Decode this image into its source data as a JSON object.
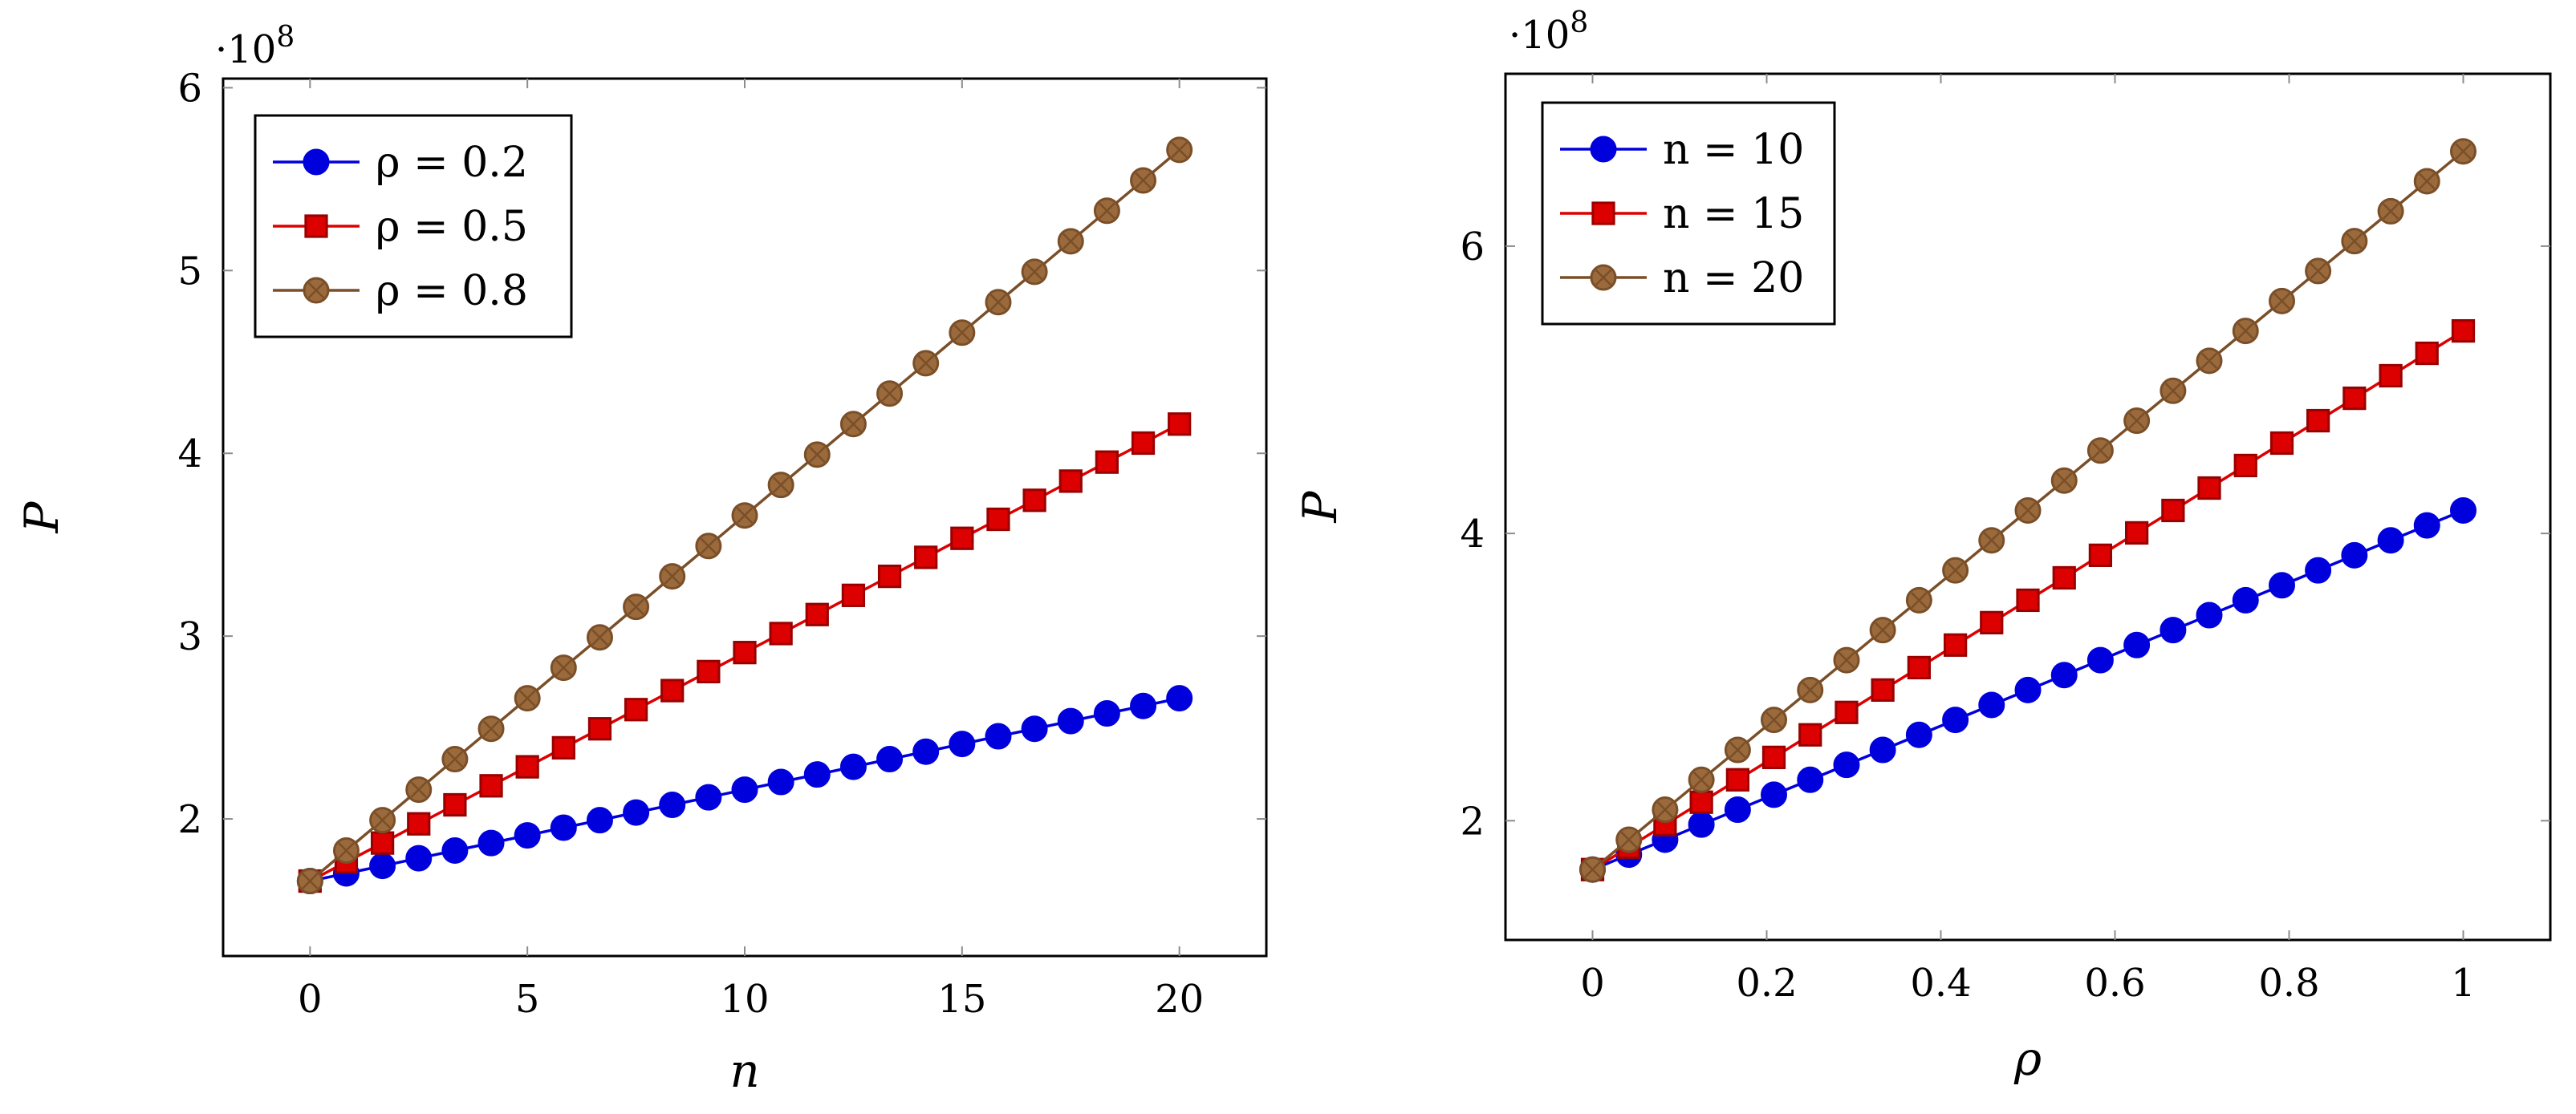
{
  "colors": {
    "blue": "#0000dd",
    "red": "#dd0000",
    "brown": "#7a4f28",
    "brown_fill": "#9a6a3c",
    "frame": "#000000",
    "tick_mark": "#8c8c8c"
  },
  "chart_data": [
    {
      "type": "line",
      "title": "",
      "xlabel": "n",
      "ylabel": "P",
      "y_multiplier": "·10",
      "y_multiplier_exp": "8",
      "xlim": [
        -2,
        22
      ],
      "ylim": [
        1.25,
        6.05
      ],
      "xticks": [
        0,
        5,
        10,
        15,
        20
      ],
      "xtick_labels": [
        "0",
        "5",
        "10",
        "15",
        "20"
      ],
      "yticks": [
        2,
        3,
        4,
        5,
        6
      ],
      "ytick_labels": [
        "2",
        "3",
        "4",
        "5",
        "6"
      ],
      "grid": false,
      "legend_placement": "top-left",
      "x": [
        0,
        0.8333,
        1.6667,
        2.5,
        3.3333,
        4.1667,
        5,
        5.8333,
        6.6667,
        7.5,
        8.3333,
        9.1667,
        10,
        10.8333,
        11.6667,
        12.5,
        13.3333,
        14.1667,
        15,
        15.8333,
        16.6667,
        17.5,
        18.3333,
        19.1667,
        20
      ],
      "series": [
        {
          "name": "ρ = 0.2",
          "marker": "circle",
          "color": "blue",
          "values": [
            1.66,
            1.702,
            1.743,
            1.785,
            1.827,
            1.868,
            1.91,
            1.952,
            1.993,
            2.035,
            2.077,
            2.118,
            2.16,
            2.202,
            2.243,
            2.285,
            2.327,
            2.368,
            2.41,
            2.452,
            2.493,
            2.535,
            2.577,
            2.618,
            2.66
          ]
        },
        {
          "name": "ρ = 0.5",
          "marker": "square",
          "color": "red",
          "values": [
            1.66,
            1.764,
            1.868,
            1.973,
            2.077,
            2.181,
            2.285,
            2.389,
            2.493,
            2.598,
            2.702,
            2.806,
            2.91,
            3.014,
            3.118,
            3.223,
            3.327,
            3.431,
            3.535,
            3.639,
            3.743,
            3.848,
            3.952,
            4.056,
            4.16
          ]
        },
        {
          "name": "ρ = 0.8",
          "marker": "otimes",
          "color": "brown",
          "values": [
            1.66,
            1.827,
            1.993,
            2.16,
            2.327,
            2.493,
            2.66,
            2.827,
            2.993,
            3.16,
            3.327,
            3.493,
            3.66,
            3.827,
            3.993,
            4.16,
            4.327,
            4.493,
            4.66,
            4.827,
            4.993,
            5.16,
            5.327,
            5.493,
            5.66
          ]
        }
      ]
    },
    {
      "type": "line",
      "title": "",
      "xlabel": "ρ",
      "ylabel": "P",
      "y_multiplier": "·10",
      "y_multiplier_exp": "8",
      "xlim": [
        -0.1,
        1.1
      ],
      "ylim": [
        1.17,
        7.2
      ],
      "xticks": [
        0,
        0.2,
        0.4,
        0.6,
        0.8,
        1
      ],
      "xtick_labels": [
        "0",
        "0.2",
        "0.4",
        "0.6",
        "0.8",
        "1"
      ],
      "yticks": [
        2,
        4,
        6
      ],
      "ytick_labels": [
        "2",
        "4",
        "6"
      ],
      "grid": false,
      "legend_placement": "top-left",
      "x": [
        0,
        0.0417,
        0.0833,
        0.125,
        0.1667,
        0.2083,
        0.25,
        0.2917,
        0.3333,
        0.375,
        0.4167,
        0.4583,
        0.5,
        0.5417,
        0.5833,
        0.625,
        0.6667,
        0.7083,
        0.75,
        0.7917,
        0.8333,
        0.875,
        0.9167,
        0.9583,
        1
      ],
      "series": [
        {
          "name": "n = 10",
          "marker": "circle",
          "color": "blue",
          "values": [
            1.66,
            1.764,
            1.868,
            1.973,
            2.077,
            2.181,
            2.285,
            2.389,
            2.493,
            2.598,
            2.702,
            2.806,
            2.91,
            3.014,
            3.118,
            3.223,
            3.327,
            3.431,
            3.535,
            3.639,
            3.743,
            3.848,
            3.952,
            4.056,
            4.16
          ]
        },
        {
          "name": "n = 15",
          "marker": "square",
          "color": "red",
          "values": [
            1.66,
            1.816,
            1.973,
            2.129,
            2.285,
            2.441,
            2.598,
            2.754,
            2.91,
            3.066,
            3.223,
            3.379,
            3.535,
            3.691,
            3.848,
            4.004,
            4.16,
            4.316,
            4.473,
            4.629,
            4.785,
            4.941,
            5.098,
            5.254,
            5.41
          ]
        },
        {
          "name": "n = 20",
          "marker": "otimes",
          "color": "brown",
          "values": [
            1.66,
            1.868,
            2.077,
            2.285,
            2.493,
            2.702,
            2.91,
            3.118,
            3.327,
            3.535,
            3.743,
            3.952,
            4.16,
            4.368,
            4.577,
            4.785,
            4.993,
            5.202,
            5.41,
            5.618,
            5.827,
            6.035,
            6.243,
            6.452,
            6.66
          ]
        }
      ]
    }
  ]
}
